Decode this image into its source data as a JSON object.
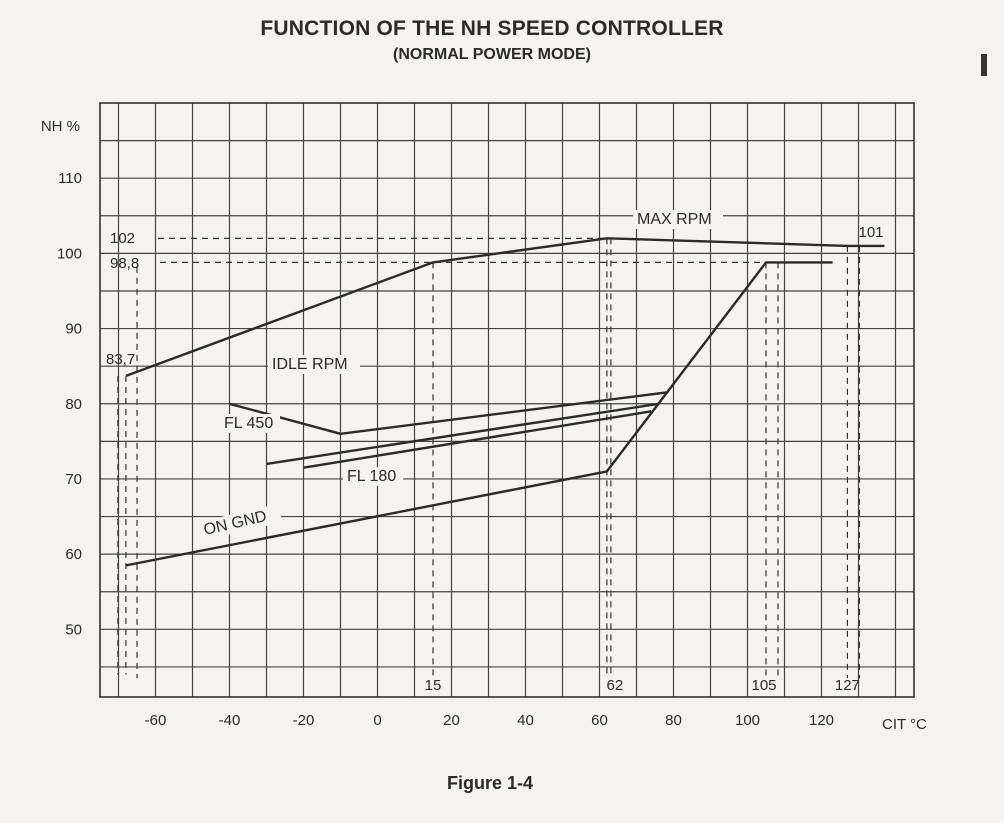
{
  "header": {
    "title": "FUNCTION OF THE NH SPEED CONTROLLER",
    "subtitle": "(NORMAL POWER MODE)"
  },
  "footer": {
    "caption": "Figure 1-4"
  },
  "chart_data": {
    "type": "line",
    "title": "FUNCTION OF THE NH SPEED CONTROLLER",
    "subtitle": "(NORMAL POWER MODE)",
    "xlabel": "CIT °C",
    "ylabel": "NH %",
    "xlim": [
      -75,
      145
    ],
    "ylim": [
      41,
      120
    ],
    "grid": true,
    "x_ticks": [
      -60,
      -40,
      -20,
      0,
      20,
      40,
      60,
      80,
      100,
      120
    ],
    "y_ticks": [
      50,
      60,
      70,
      80,
      90,
      100,
      110
    ],
    "series": [
      {
        "name": "MAX RPM",
        "points": [
          [
            -68,
            83.7
          ],
          [
            15,
            98.8
          ],
          [
            62,
            102
          ],
          [
            127,
            101
          ],
          [
            137,
            101
          ]
        ]
      },
      {
        "name": "IDLE RPM",
        "points": [
          [
            -40,
            80
          ],
          [
            -10,
            76
          ],
          [
            78,
            81.5
          ]
        ]
      },
      {
        "name": "FL 450",
        "points": [
          [
            -30,
            72
          ],
          [
            76,
            80
          ]
        ]
      },
      {
        "name": "FL 180",
        "points": [
          [
            -20,
            71.5
          ],
          [
            74,
            79
          ]
        ]
      },
      {
        "name": "ON GND",
        "points": [
          [
            -68,
            58.5
          ],
          [
            62,
            71
          ],
          [
            105,
            98.8
          ],
          [
            123,
            98.8
          ]
        ]
      }
    ],
    "annotations": {
      "y_values": [
        {
          "label": "83,7",
          "value": 83.7
        },
        {
          "label": "98,8",
          "value": 98.8
        },
        {
          "label": "102",
          "value": 102
        }
      ],
      "x_values": [
        {
          "label": "15",
          "value": 15
        },
        {
          "label": "62",
          "value": 62
        },
        {
          "label": "105",
          "value": 105
        },
        {
          "label": "127",
          "value": 127
        }
      ],
      "value_101": "101"
    }
  }
}
